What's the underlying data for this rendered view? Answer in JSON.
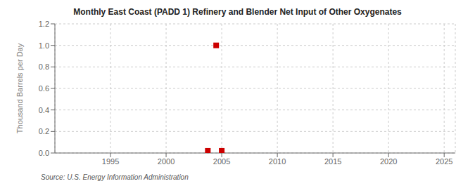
{
  "chart_data": {
    "type": "scatter",
    "title": "Monthly East Coast (PADD 1) Refinery and Blender Net Input of Other Oxygenates",
    "y_label": "Thousand Barrels per Day",
    "annotation": "Source: U.S. Energy Information Administration",
    "x": [
      2003.75,
      2004.5,
      2005.0
    ],
    "values": [
      0.02,
      1.0,
      0.02
    ],
    "color": "#cc0000",
    "marker": "square",
    "xlim": [
      1990,
      2026
    ],
    "xticks": [
      1995,
      2000,
      2005,
      2010,
      2015,
      2020,
      2025
    ],
    "ylim": [
      0.0,
      1.2
    ],
    "yticks": [
      {
        "value": 0.0,
        "label": "0.0"
      },
      0.2,
      0.4,
      0.6,
      0.8,
      {
        "value": 1.0,
        "label": "1.0"
      },
      1.2
    ],
    "grid": true
  }
}
